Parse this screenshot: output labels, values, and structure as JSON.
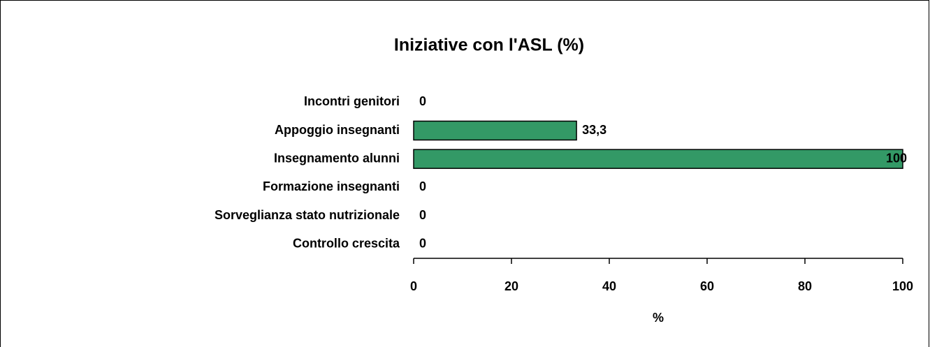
{
  "chart_data": {
    "type": "bar",
    "orientation": "horizontal",
    "title": "Iniziative con l'ASL (%)",
    "categories": [
      "Incontri genitori",
      "Appoggio insegnanti",
      "Insegnamento alunni",
      "Formazione insegnanti",
      "Sorveglianza stato nutrizionale",
      "Controllo crescita"
    ],
    "values": [
      0,
      33.3,
      100,
      0,
      0,
      0
    ],
    "value_labels": [
      "0",
      "33,3",
      "100",
      "0",
      "0",
      "0"
    ],
    "color": "#339966",
    "xlabel": "%",
    "xlim": [
      0,
      100
    ],
    "xticks": [
      0,
      20,
      40,
      60,
      80,
      100
    ]
  }
}
